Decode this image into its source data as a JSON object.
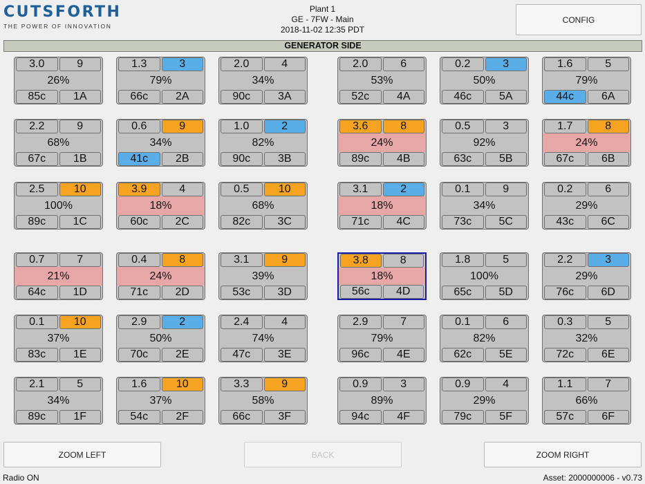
{
  "header": {
    "logo_text": "CUTSFORTH",
    "logo_tagline": "THE POWER OF INNOVATION",
    "plant": "Plant 1",
    "unit": "GE - 7FW - Main",
    "timestamp": "2018-11-02 12:35 PDT",
    "config_label": "CONFIG"
  },
  "section_title": "GENERATOR SIDE",
  "colors": {
    "blue_flag": "#5aaee8",
    "orange_flag": "#f5a321",
    "alert_fill": "#e8a7a7",
    "selected_border": "#1a1aa8"
  },
  "tiles": [
    {
      "id": "1A",
      "top_left": "3.0",
      "top_right": "9",
      "pct": "26%",
      "temp": "85c",
      "tl_color": "",
      "tr_color": "",
      "bl_color": "",
      "alert": false,
      "selected": false
    },
    {
      "id": "2A",
      "top_left": "1.3",
      "top_right": "3",
      "pct": "79%",
      "temp": "66c",
      "tl_color": "",
      "tr_color": "blue",
      "bl_color": "",
      "alert": false,
      "selected": false
    },
    {
      "id": "3A",
      "top_left": "2.0",
      "top_right": "4",
      "pct": "34%",
      "temp": "90c",
      "tl_color": "",
      "tr_color": "",
      "bl_color": "",
      "alert": false,
      "selected": false
    },
    {
      "id": "4A",
      "top_left": "2.0",
      "top_right": "6",
      "pct": "53%",
      "temp": "52c",
      "tl_color": "",
      "tr_color": "",
      "bl_color": "",
      "alert": false,
      "selected": false
    },
    {
      "id": "5A",
      "top_left": "0.2",
      "top_right": "3",
      "pct": "50%",
      "temp": "46c",
      "tl_color": "",
      "tr_color": "blue",
      "bl_color": "",
      "alert": false,
      "selected": false
    },
    {
      "id": "6A",
      "top_left": "1.6",
      "top_right": "5",
      "pct": "79%",
      "temp": "44c",
      "tl_color": "",
      "tr_color": "",
      "bl_color": "blue",
      "alert": false,
      "selected": false
    },
    {
      "id": "1B",
      "top_left": "2.2",
      "top_right": "9",
      "pct": "68%",
      "temp": "67c",
      "tl_color": "",
      "tr_color": "",
      "bl_color": "",
      "alert": false,
      "selected": false
    },
    {
      "id": "2B",
      "top_left": "0.6",
      "top_right": "9",
      "pct": "34%",
      "temp": "41c",
      "tl_color": "",
      "tr_color": "orange",
      "bl_color": "blue",
      "alert": false,
      "selected": false
    },
    {
      "id": "3B",
      "top_left": "1.0",
      "top_right": "2",
      "pct": "82%",
      "temp": "90c",
      "tl_color": "",
      "tr_color": "blue",
      "bl_color": "",
      "alert": false,
      "selected": false
    },
    {
      "id": "4B",
      "top_left": "3.6",
      "top_right": "8",
      "pct": "24%",
      "temp": "89c",
      "tl_color": "orange",
      "tr_color": "orange",
      "bl_color": "",
      "alert": true,
      "selected": false
    },
    {
      "id": "5B",
      "top_left": "0.5",
      "top_right": "3",
      "pct": "92%",
      "temp": "63c",
      "tl_color": "",
      "tr_color": "",
      "bl_color": "",
      "alert": false,
      "selected": false
    },
    {
      "id": "6B",
      "top_left": "1.7",
      "top_right": "8",
      "pct": "24%",
      "temp": "67c",
      "tl_color": "",
      "tr_color": "orange",
      "bl_color": "",
      "alert": true,
      "selected": false
    },
    {
      "id": "1C",
      "top_left": "2.5",
      "top_right": "10",
      "pct": "100%",
      "temp": "89c",
      "tl_color": "",
      "tr_color": "orange",
      "bl_color": "",
      "alert": false,
      "selected": false
    },
    {
      "id": "2C",
      "top_left": "3.9",
      "top_right": "4",
      "pct": "18%",
      "temp": "60c",
      "tl_color": "orange",
      "tr_color": "",
      "bl_color": "",
      "alert": true,
      "selected": false
    },
    {
      "id": "3C",
      "top_left": "0.5",
      "top_right": "10",
      "pct": "68%",
      "temp": "82c",
      "tl_color": "",
      "tr_color": "orange",
      "bl_color": "",
      "alert": false,
      "selected": false
    },
    {
      "id": "4C",
      "top_left": "3.1",
      "top_right": "2",
      "pct": "18%",
      "temp": "71c",
      "tl_color": "",
      "tr_color": "blue",
      "bl_color": "",
      "alert": true,
      "selected": false
    },
    {
      "id": "5C",
      "top_left": "0.1",
      "top_right": "9",
      "pct": "34%",
      "temp": "73c",
      "tl_color": "",
      "tr_color": "",
      "bl_color": "",
      "alert": false,
      "selected": false
    },
    {
      "id": "6C",
      "top_left": "0.2",
      "top_right": "6",
      "pct": "29%",
      "temp": "43c",
      "tl_color": "",
      "tr_color": "",
      "bl_color": "",
      "alert": false,
      "selected": false
    },
    {
      "id": "1D",
      "top_left": "0.7",
      "top_right": "7",
      "pct": "21%",
      "temp": "64c",
      "tl_color": "",
      "tr_color": "",
      "bl_color": "",
      "alert": true,
      "selected": false
    },
    {
      "id": "2D",
      "top_left": "0.4",
      "top_right": "8",
      "pct": "24%",
      "temp": "71c",
      "tl_color": "",
      "tr_color": "orange",
      "bl_color": "",
      "alert": true,
      "selected": false
    },
    {
      "id": "3D",
      "top_left": "3.1",
      "top_right": "9",
      "pct": "39%",
      "temp": "53c",
      "tl_color": "",
      "tr_color": "orange",
      "bl_color": "",
      "alert": false,
      "selected": false
    },
    {
      "id": "4D",
      "top_left": "3.8",
      "top_right": "8",
      "pct": "18%",
      "temp": "56c",
      "tl_color": "orange",
      "tr_color": "",
      "bl_color": "",
      "alert": true,
      "selected": true
    },
    {
      "id": "5D",
      "top_left": "1.8",
      "top_right": "5",
      "pct": "100%",
      "temp": "65c",
      "tl_color": "",
      "tr_color": "",
      "bl_color": "",
      "alert": false,
      "selected": false
    },
    {
      "id": "6D",
      "top_left": "2.2",
      "top_right": "3",
      "pct": "29%",
      "temp": "76c",
      "tl_color": "",
      "tr_color": "blue",
      "bl_color": "",
      "alert": false,
      "selected": false
    },
    {
      "id": "1E",
      "top_left": "0.1",
      "top_right": "10",
      "pct": "37%",
      "temp": "83c",
      "tl_color": "",
      "tr_color": "orange",
      "bl_color": "",
      "alert": false,
      "selected": false
    },
    {
      "id": "2E",
      "top_left": "2.9",
      "top_right": "2",
      "pct": "50%",
      "temp": "70c",
      "tl_color": "",
      "tr_color": "blue",
      "bl_color": "",
      "alert": false,
      "selected": false
    },
    {
      "id": "3E",
      "top_left": "2.4",
      "top_right": "4",
      "pct": "74%",
      "temp": "47c",
      "tl_color": "",
      "tr_color": "",
      "bl_color": "",
      "alert": false,
      "selected": false
    },
    {
      "id": "4E",
      "top_left": "2.9",
      "top_right": "7",
      "pct": "79%",
      "temp": "96c",
      "tl_color": "",
      "tr_color": "",
      "bl_color": "",
      "alert": false,
      "selected": false
    },
    {
      "id": "5E",
      "top_left": "0.1",
      "top_right": "6",
      "pct": "82%",
      "temp": "62c",
      "tl_color": "",
      "tr_color": "",
      "bl_color": "",
      "alert": false,
      "selected": false
    },
    {
      "id": "6E",
      "top_left": "0.3",
      "top_right": "5",
      "pct": "32%",
      "temp": "72c",
      "tl_color": "",
      "tr_color": "",
      "bl_color": "",
      "alert": false,
      "selected": false
    },
    {
      "id": "1F",
      "top_left": "2.1",
      "top_right": "5",
      "pct": "34%",
      "temp": "89c",
      "tl_color": "",
      "tr_color": "",
      "bl_color": "",
      "alert": false,
      "selected": false
    },
    {
      "id": "2F",
      "top_left": "1.6",
      "top_right": "10",
      "pct": "37%",
      "temp": "54c",
      "tl_color": "",
      "tr_color": "orange",
      "bl_color": "",
      "alert": false,
      "selected": false
    },
    {
      "id": "3F",
      "top_left": "3.3",
      "top_right": "9",
      "pct": "58%",
      "temp": "66c",
      "tl_color": "",
      "tr_color": "orange",
      "bl_color": "",
      "alert": false,
      "selected": false
    },
    {
      "id": "4F",
      "top_left": "0.9",
      "top_right": "3",
      "pct": "89%",
      "temp": "94c",
      "tl_color": "",
      "tr_color": "",
      "bl_color": "",
      "alert": false,
      "selected": false
    },
    {
      "id": "5F",
      "top_left": "0.9",
      "top_right": "4",
      "pct": "29%",
      "temp": "79c",
      "tl_color": "",
      "tr_color": "",
      "bl_color": "",
      "alert": false,
      "selected": false
    },
    {
      "id": "6F",
      "top_left": "1.1",
      "top_right": "7",
      "pct": "66%",
      "temp": "57c",
      "tl_color": "",
      "tr_color": "",
      "bl_color": "",
      "alert": false,
      "selected": false
    }
  ],
  "buttons": {
    "zoom_left": "ZOOM LEFT",
    "back": "BACK",
    "zoom_right": "ZOOM RIGHT"
  },
  "footer": {
    "radio_status": "Radio ON",
    "asset": "Asset: 2000000006 - v0.73"
  }
}
